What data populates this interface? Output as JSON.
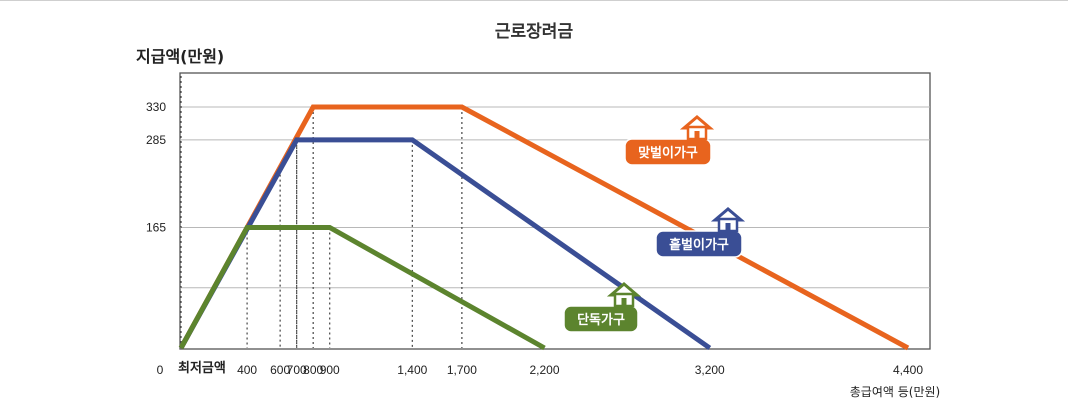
{
  "chart_data": {
    "type": "line",
    "title": "근로장려금",
    "ylabel": "지급액(만원)",
    "xlabel": "총급여액 등(만원)",
    "x_zero_label": "최저금액",
    "origin_label": "0",
    "xlim": [
      0,
      4400
    ],
    "ylim": [
      0,
      380
    ],
    "x_ticks": [
      400,
      600,
      700,
      800,
      900,
      1400,
      1700,
      2200,
      3200,
      4400
    ],
    "x_tick_labels": [
      "400",
      "600",
      "700",
      "800",
      "900",
      "1,400",
      "1,700",
      "2,200",
      "3,200",
      "4,400"
    ],
    "y_ticks": [
      165,
      285,
      330
    ],
    "y_tick_labels": [
      "165",
      "285",
      "330"
    ],
    "grid": true,
    "series": [
      {
        "name": "맞벌이가구",
        "color": "#E8641E",
        "x": [
          0,
          800,
          1700,
          4400
        ],
        "y": [
          0,
          330,
          330,
          0
        ]
      },
      {
        "name": "홑벌이가구",
        "color": "#3A4E95",
        "x": [
          0,
          700,
          1400,
          3200
        ],
        "y": [
          0,
          285,
          285,
          0
        ]
      },
      {
        "name": "단독가구",
        "color": "#5C842E",
        "x": [
          0,
          400,
          900,
          2200
        ],
        "y": [
          0,
          165,
          165,
          0
        ]
      }
    ],
    "annotations": [
      {
        "series": "맞벌이가구",
        "label": "맞벌이가구",
        "icon": "house-icon"
      },
      {
        "series": "홑벌이가구",
        "label": "홑벌이가구",
        "icon": "house-icon"
      },
      {
        "series": "단독가구",
        "label": "단독가구",
        "icon": "house-icon"
      }
    ]
  }
}
